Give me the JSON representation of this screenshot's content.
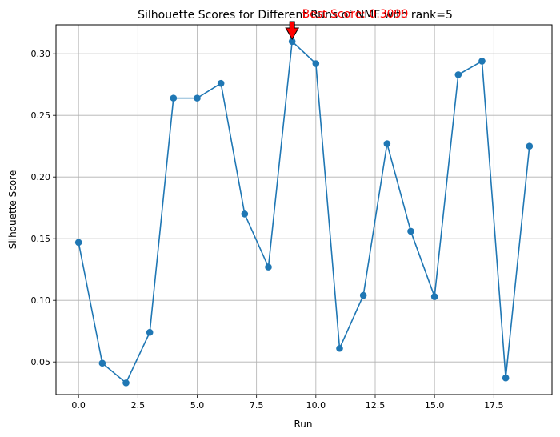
{
  "chart_data": {
    "type": "line",
    "title": "Silhouette Scores for Different Runs of NMF with rank=5",
    "xlabel": "Run",
    "ylabel": "Silhouette Score",
    "xlim": [
      -0.95,
      19.95
    ],
    "ylim": [
      0.0235,
      0.3235
    ],
    "xticks": [
      0.0,
      2.5,
      5.0,
      7.5,
      10.0,
      12.5,
      15.0,
      17.5
    ],
    "xtick_labels": [
      "0.0",
      "2.5",
      "5.0",
      "7.5",
      "10.0",
      "12.5",
      "15.0",
      "17.5"
    ],
    "yticks": [
      0.05,
      0.1,
      0.15,
      0.2,
      0.25,
      0.3
    ],
    "ytick_labels": [
      "0.05",
      "0.10",
      "0.15",
      "0.20",
      "0.25",
      "0.30"
    ],
    "grid": true,
    "series_color": "#1f77b4",
    "x": [
      0,
      1,
      2,
      3,
      4,
      5,
      6,
      7,
      8,
      9,
      10,
      11,
      12,
      13,
      14,
      15,
      16,
      17,
      18,
      19
    ],
    "values": [
      0.147,
      0.049,
      0.033,
      0.074,
      0.264,
      0.264,
      0.276,
      0.17,
      0.127,
      0.31,
      0.292,
      0.061,
      0.104,
      0.227,
      0.156,
      0.103,
      0.283,
      0.294,
      0.037,
      0.225
    ],
    "annotation": {
      "text": "Best Score: 0.3099",
      "x": 9,
      "y": 0.3099,
      "color": "#ff0000",
      "arrow_color": "#ff0000"
    }
  }
}
